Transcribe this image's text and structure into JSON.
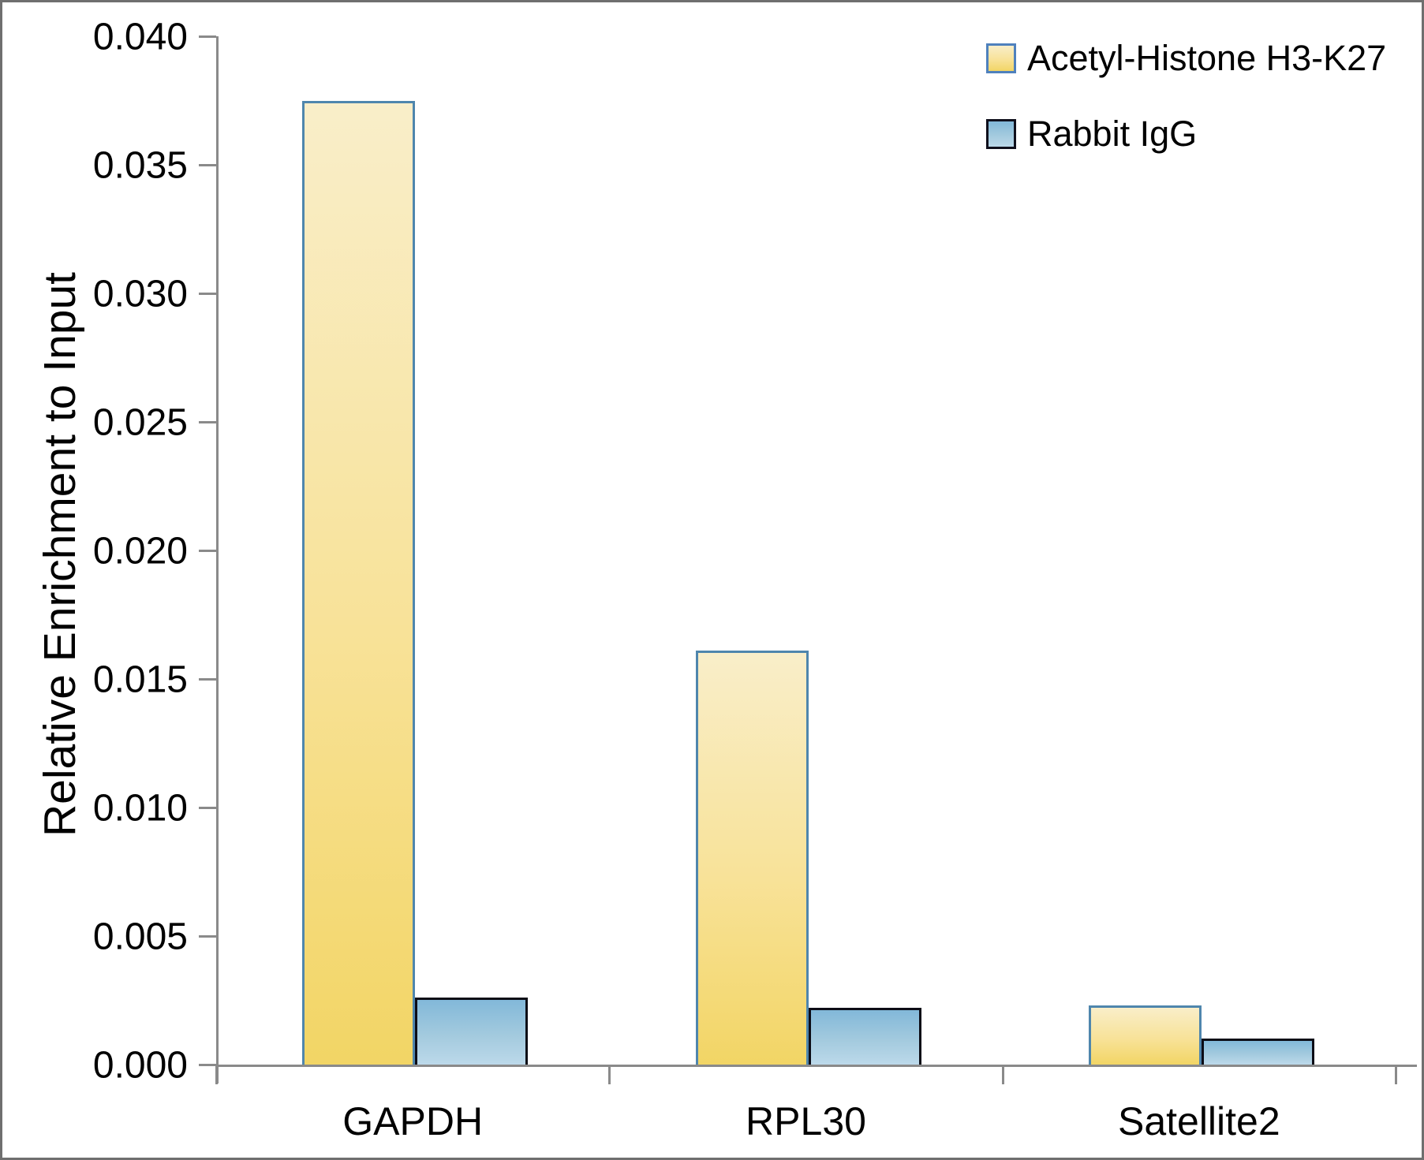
{
  "chart_data": {
    "type": "bar",
    "title": "",
    "xlabel": "",
    "ylabel": "Relative Enrichment to Input",
    "categories": [
      "GAPDH",
      "RPL30",
      "Satellite2"
    ],
    "series": [
      {
        "name": "Acetyl-Histone H3-K27",
        "values": [
          0.0375,
          0.0161,
          0.0023
        ],
        "fill_top": "#f9eec9",
        "fill_mid": "#f8e298",
        "fill_bottom": "#f2d565",
        "border_color": "#4f86ad"
      },
      {
        "name": "Rabbit IgG",
        "values": [
          0.0026,
          0.0022,
          0.001
        ],
        "fill_top": "#82b8d9",
        "fill_mid": "#a3cade",
        "fill_bottom": "#bcd9ea",
        "border_color": "#0c0c16"
      }
    ],
    "ylim": [
      0.0,
      0.04
    ],
    "ytick_step": 0.005,
    "ytick_decimals": 3,
    "grid": false,
    "legend_position": "top-right",
    "axis_color": "#8a8a8a",
    "text_color": "#000000"
  }
}
